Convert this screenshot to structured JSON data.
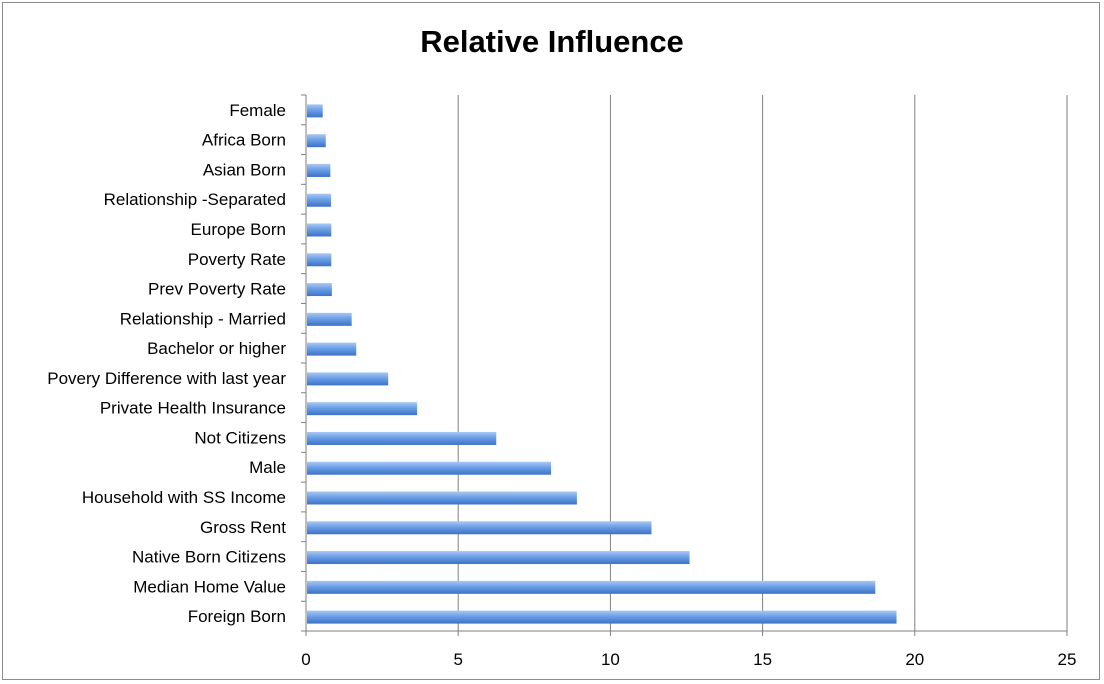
{
  "chart_data": {
    "type": "bar",
    "orientation": "horizontal",
    "title": "Relative Influence",
    "xlabel": "",
    "ylabel": "",
    "categories": [
      "Female",
      "Africa Born",
      "Asian Born",
      "Relationship -Separated",
      "Europe Born",
      "Poverty Rate",
      "Prev Poverty Rate",
      "Relationship - Married",
      "Bachelor or higher ",
      "Povery Difference with last year",
      "Private Health Insurance",
      "Not Citizens",
      "Male",
      "Household with SS Income",
      "Gross Rent",
      "Native Born Citizens",
      "Median Home Value",
      "Foreign Born"
    ],
    "values": [
      0.55,
      0.65,
      0.8,
      0.82,
      0.83,
      0.83,
      0.85,
      1.5,
      1.65,
      2.7,
      3.65,
      6.25,
      8.05,
      8.9,
      11.35,
      12.6,
      18.7,
      19.4
    ],
    "xlim": [
      0,
      25
    ],
    "xticks": [
      0,
      5,
      10,
      15,
      20,
      25
    ],
    "grid": "vertical major gridlines",
    "legend": "none",
    "colors": {
      "bar_light": "#a9c8f4",
      "bar_mid": "#6a9ee6",
      "bar_dark": "#3d72c6",
      "gridline": "#7f7f7f",
      "axis": "#7f7f7f"
    }
  }
}
